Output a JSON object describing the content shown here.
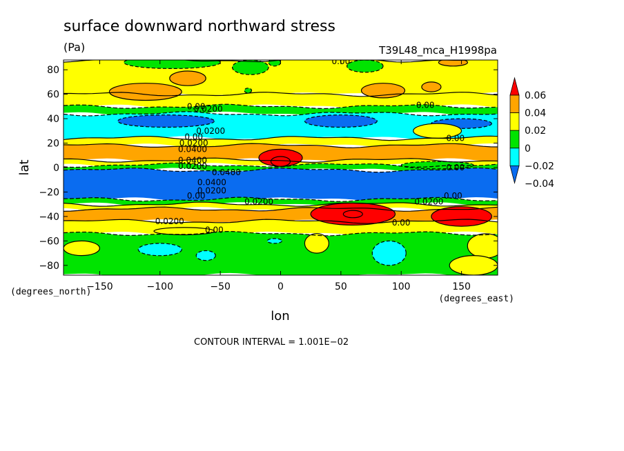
{
  "chart_data": {
    "type": "heatmap",
    "title": "surface downward northward stress",
    "units": "(Pa)",
    "run_label": "T39L48_mca_H1998pa",
    "xlabel": "lon",
    "ylabel": "lat",
    "x_unit_label": "(degrees_east)",
    "y_unit_label": "(degrees_north)",
    "xlim": [
      -180,
      180
    ],
    "ylim": [
      -88,
      88
    ],
    "x_ticks": [
      -150,
      -100,
      -50,
      0,
      50,
      100,
      150
    ],
    "x_tick_labels": [
      "−150",
      "−100",
      "−50",
      "0",
      "50",
      "100",
      "150"
    ],
    "y_ticks": [
      80,
      60,
      40,
      20,
      0,
      -20,
      -40,
      -60,
      -80
    ],
    "y_tick_labels": [
      "80",
      "60",
      "40",
      "20",
      "0",
      "−20",
      "−40",
      "−60",
      "−80"
    ],
    "contour_interval_text": "CONTOUR INTERVAL = 1.001E−02",
    "colorbar": {
      "levels": [
        -0.04,
        -0.02,
        0,
        0.02,
        0.04,
        0.06
      ],
      "labels": [
        "−0.04",
        "−0.02",
        "0",
        "0.02",
        "0.04",
        "0.06"
      ],
      "colors": [
        "#0a6cf0",
        "#00ffff",
        "#00e400",
        "#ffff00",
        "#ffa500",
        "#ff0000"
      ]
    },
    "zonal_bands": [
      {
        "lat": [
          60,
          88
        ],
        "value": 0.01
      },
      {
        "lat": [
          50,
          60
        ],
        "value": 0.0
      },
      {
        "lat": [
          44,
          50
        ],
        "value": -0.01
      },
      {
        "lat": [
          24,
          44
        ],
        "value": -0.03
      },
      {
        "lat": [
          18,
          24
        ],
        "value": 0.01
      },
      {
        "lat": [
          6,
          18
        ],
        "value": 0.03
      },
      {
        "lat": [
          2,
          6
        ],
        "value": 0.01
      },
      {
        "lat": [
          -2,
          2
        ],
        "value": -0.01
      },
      {
        "lat": [
          -26,
          -2
        ],
        "value": -0.05
      },
      {
        "lat": [
          -30,
          -26
        ],
        "value": -0.01
      },
      {
        "lat": [
          -34,
          -30
        ],
        "value": 0.01
      },
      {
        "lat": [
          -44,
          -34
        ],
        "value": 0.03
      },
      {
        "lat": [
          -54,
          -44
        ],
        "value": 0.01
      },
      {
        "lat": [
          -88,
          -54
        ],
        "value": -0.01
      }
    ],
    "features": [
      {
        "lon": -90,
        "lat": 86,
        "rx": 40,
        "ry": 5,
        "value": -0.01
      },
      {
        "lon": -5,
        "lat": 86,
        "rx": 5,
        "ry": 3,
        "value": -0.01
      },
      {
        "lon": 143,
        "lat": 86,
        "rx": 12,
        "ry": 3,
        "value": 0.03
      },
      {
        "lon": -112,
        "lat": 62,
        "rx": 30,
        "ry": 7,
        "value": 0.03
      },
      {
        "lon": -77,
        "lat": 73,
        "rx": 15,
        "ry": 6,
        "value": 0.03
      },
      {
        "lon": -27,
        "lat": 63,
        "rx": 3,
        "ry": 2,
        "value": -0.01
      },
      {
        "lon": 85,
        "lat": 63,
        "rx": 18,
        "ry": 6,
        "value": 0.03
      },
      {
        "lon": 125,
        "lat": 66,
        "rx": 8,
        "ry": 4,
        "value": 0.03
      },
      {
        "lon": -25,
        "lat": 82,
        "rx": 15,
        "ry": 6,
        "value": -0.01
      },
      {
        "lon": 70,
        "lat": 83,
        "rx": 15,
        "ry": 5,
        "value": -0.01
      },
      {
        "lon": -95,
        "lat": 38,
        "rx": 40,
        "ry": 5,
        "value": -0.05
      },
      {
        "lon": 50,
        "lat": 38,
        "rx": 30,
        "ry": 5,
        "value": -0.05
      },
      {
        "lon": 150,
        "lat": 36,
        "rx": 25,
        "ry": 4,
        "value": -0.05
      },
      {
        "lon": 130,
        "lat": 30,
        "rx": 20,
        "ry": 6,
        "value": 0.01
      },
      {
        "lon": 0,
        "lat": 8,
        "rx": 18,
        "ry": 7,
        "value": 0.05
      },
      {
        "lon": 0,
        "lat": 5,
        "rx": 8,
        "ry": 4,
        "value": 0.07
      },
      {
        "lon": 130,
        "lat": 2,
        "rx": 30,
        "ry": 3,
        "value": -0.01
      },
      {
        "lon": 60,
        "lat": -38,
        "rx": 35,
        "ry": 9,
        "value": 0.05
      },
      {
        "lon": 60,
        "lat": -38,
        "rx": 8,
        "ry": 3,
        "value": 0.07
      },
      {
        "lon": 150,
        "lat": -40,
        "rx": 25,
        "ry": 8,
        "value": 0.05
      },
      {
        "lon": -80,
        "lat": -52,
        "rx": 25,
        "ry": 3,
        "value": 0.01
      },
      {
        "lon": -100,
        "lat": -67,
        "rx": 18,
        "ry": 5,
        "value": -0.03
      },
      {
        "lon": -62,
        "lat": -72,
        "rx": 8,
        "ry": 4,
        "value": -0.03
      },
      {
        "lon": 90,
        "lat": -70,
        "rx": 14,
        "ry": 10,
        "value": -0.03
      },
      {
        "lon": -5,
        "lat": -60,
        "rx": 6,
        "ry": 2,
        "value": -0.03
      },
      {
        "lon": -165,
        "lat": -66,
        "rx": 15,
        "ry": 6,
        "value": 0.01
      },
      {
        "lon": 30,
        "lat": -62,
        "rx": 10,
        "ry": 8,
        "value": 0.01
      },
      {
        "lon": 170,
        "lat": -64,
        "rx": 15,
        "ry": 10,
        "value": 0.01
      },
      {
        "lon": 160,
        "lat": -80,
        "rx": 20,
        "ry": 8,
        "value": 0.01
      }
    ],
    "contour_labels": [
      {
        "text": "0.00",
        "lon": -70,
        "lat": 50
      },
      {
        "text": "0.0200",
        "lon": -60,
        "lat": 48
      },
      {
        "text": "0.00",
        "lon": 50,
        "lat": 87
      },
      {
        "text": "0.00",
        "lon": 120,
        "lat": 51
      },
      {
        "text": "0.0200",
        "lon": -58,
        "lat": 30
      },
      {
        "text": "0.00",
        "lon": -72,
        "lat": 25
      },
      {
        "text": "0.0200",
        "lon": -72,
        "lat": 20
      },
      {
        "text": "0.00",
        "lon": 145,
        "lat": 24
      },
      {
        "text": "0.0400",
        "lon": -73,
        "lat": 15
      },
      {
        "text": "0.0400",
        "lon": -73,
        "lat": 6
      },
      {
        "text": "0.0200",
        "lon": -73,
        "lat": 1
      },
      {
        "text": "0.0400",
        "lon": -45,
        "lat": -4
      },
      {
        "text": "0.00",
        "lon": 145,
        "lat": 0
      },
      {
        "text": "0.0400",
        "lon": -57,
        "lat": -12
      },
      {
        "text": "0.0200",
        "lon": -57,
        "lat": -19
      },
      {
        "text": "0.00",
        "lon": -70,
        "lat": -23
      },
      {
        "text": "0.0200",
        "lon": -18,
        "lat": -28
      },
      {
        "text": "0.0200",
        "lon": 123,
        "lat": -28
      },
      {
        "text": "0.00",
        "lon": 143,
        "lat": -23
      },
      {
        "text": "0.0200",
        "lon": -92,
        "lat": -44
      },
      {
        "text": "0.00",
        "lon": 100,
        "lat": -45
      },
      {
        "text": "0.00",
        "lon": -55,
        "lat": -51
      }
    ]
  }
}
